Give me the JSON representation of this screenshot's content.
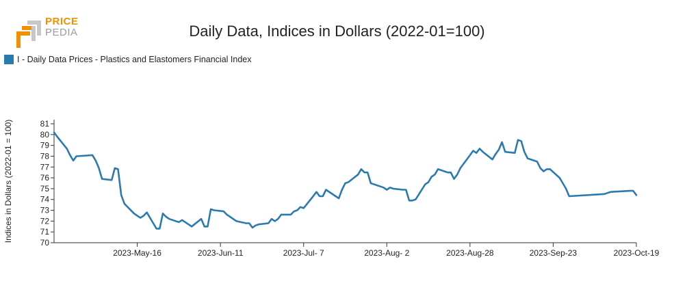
{
  "logo": {
    "price": "PRICE",
    "pedia": "PEDIA"
  },
  "chart_data": {
    "type": "line",
    "title": "Daily Data, Indices in Dollars (2022-01=100)",
    "xlabel": "",
    "ylabel": "Indices in Dollars (2022-01 = 100)",
    "ylim": [
      70,
      81
    ],
    "yticks": [
      70,
      71,
      72,
      73,
      74,
      75,
      76,
      77,
      78,
      79,
      80,
      81
    ],
    "xrange": [
      "2023-04-20",
      "2023-10-19"
    ],
    "xtick_labels": [
      "2023-May-16",
      "2023-Jun-11",
      "2023-Jul- 7",
      "2023-Aug- 2",
      "2023-Aug-28",
      "2023-Sep-23",
      "2023-Oct-19"
    ],
    "xtick_dates": [
      "2023-05-16",
      "2023-06-11",
      "2023-07-07",
      "2023-08-02",
      "2023-08-28",
      "2023-09-23",
      "2023-10-19"
    ],
    "legend_position": "top-left",
    "grid": false,
    "series": [
      {
        "name": "I - Daily Data Prices - Plastics and Elastomers Financial Index",
        "color": "#2a7ab0",
        "x": [
          "2023-04-20",
          "2023-04-21",
          "2023-04-24",
          "2023-04-25",
          "2023-04-26",
          "2023-04-27",
          "2023-05-02",
          "2023-05-03",
          "2023-05-04",
          "2023-05-05",
          "2023-05-08",
          "2023-05-09",
          "2023-05-10",
          "2023-05-11",
          "2023-05-12",
          "2023-05-15",
          "2023-05-16",
          "2023-05-17",
          "2023-05-18",
          "2023-05-19",
          "2023-05-22",
          "2023-05-23",
          "2023-05-24",
          "2023-05-25",
          "2023-05-26",
          "2023-05-29",
          "2023-05-30",
          "2023-05-31",
          "2023-06-01",
          "2023-06-02",
          "2023-06-05",
          "2023-06-06",
          "2023-06-07",
          "2023-06-08",
          "2023-06-09",
          "2023-06-12",
          "2023-06-13",
          "2023-06-14",
          "2023-06-15",
          "2023-06-16",
          "2023-06-19",
          "2023-06-20",
          "2023-06-21",
          "2023-06-22",
          "2023-06-23",
          "2023-06-26",
          "2023-06-27",
          "2023-06-28",
          "2023-06-29",
          "2023-06-30",
          "2023-07-03",
          "2023-07-04",
          "2023-07-05",
          "2023-07-06",
          "2023-07-07",
          "2023-07-10",
          "2023-07-11",
          "2023-07-12",
          "2023-07-13",
          "2023-07-14",
          "2023-07-17",
          "2023-07-18",
          "2023-07-19",
          "2023-07-20",
          "2023-07-21",
          "2023-07-24",
          "2023-07-25",
          "2023-07-26",
          "2023-07-27",
          "2023-07-28",
          "2023-07-31",
          "2023-08-01",
          "2023-08-02",
          "2023-08-03",
          "2023-08-04",
          "2023-08-07",
          "2023-08-08",
          "2023-08-09",
          "2023-08-10",
          "2023-08-11",
          "2023-08-14",
          "2023-08-15",
          "2023-08-16",
          "2023-08-17",
          "2023-08-18",
          "2023-08-21",
          "2023-08-22",
          "2023-08-23",
          "2023-08-24",
          "2023-08-25",
          "2023-08-28",
          "2023-08-29",
          "2023-08-30",
          "2023-08-31",
          "2023-09-01",
          "2023-09-04",
          "2023-09-05",
          "2023-09-06",
          "2023-09-07",
          "2023-09-08",
          "2023-09-11",
          "2023-09-12",
          "2023-09-13",
          "2023-09-14",
          "2023-09-15",
          "2023-09-18",
          "2023-09-19",
          "2023-09-20",
          "2023-09-21",
          "2023-09-22",
          "2023-09-25",
          "2023-09-26",
          "2023-09-27",
          "2023-09-28",
          "2023-10-09",
          "2023-10-10",
          "2023-10-11",
          "2023-10-17",
          "2023-10-18",
          "2023-10-19"
        ],
        "values": [
          80.2,
          79.8,
          78.7,
          78.1,
          77.6,
          78.0,
          78.1,
          77.6,
          76.9,
          75.9,
          75.8,
          76.9,
          76.8,
          74.4,
          73.6,
          72.7,
          72.5,
          72.3,
          72.5,
          72.8,
          71.3,
          71.3,
          72.7,
          72.4,
          72.2,
          71.9,
          72.1,
          71.9,
          71.7,
          71.5,
          72.2,
          71.5,
          71.5,
          73.1,
          73.0,
          72.9,
          72.6,
          72.4,
          72.2,
          72.0,
          71.8,
          71.8,
          71.4,
          71.6,
          71.7,
          71.8,
          72.2,
          72.0,
          72.2,
          72.6,
          72.6,
          72.9,
          73.0,
          73.3,
          73.2,
          74.3,
          74.7,
          74.3,
          74.3,
          74.9,
          74.3,
          74.1,
          74.9,
          75.5,
          75.6,
          76.3,
          76.8,
          76.5,
          76.5,
          75.5,
          75.2,
          75.1,
          74.9,
          75.1,
          75.0,
          74.9,
          74.9,
          73.9,
          73.9,
          74.0,
          75.4,
          75.6,
          76.1,
          76.3,
          76.8,
          76.5,
          76.5,
          75.9,
          76.3,
          76.9,
          78.1,
          78.5,
          78.3,
          78.7,
          78.4,
          77.7,
          78.2,
          78.6,
          79.3,
          78.4,
          78.3,
          79.5,
          79.4,
          78.4,
          77.8,
          77.5,
          76.9,
          76.6,
          76.8,
          76.8,
          76.0,
          75.5,
          75.0,
          74.3,
          74.5,
          74.6,
          74.7,
          74.8,
          74.8,
          74.4
        ]
      }
    ]
  }
}
